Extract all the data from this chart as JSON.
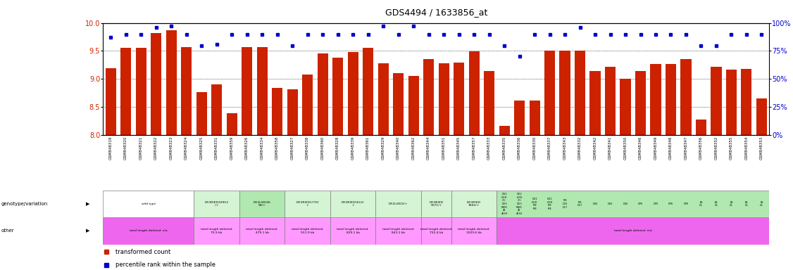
{
  "title": "GDS4494 / 1633856_at",
  "bar_color": "#CC2200",
  "dot_color": "#0000CC",
  "ylim": [
    8.0,
    10.0
  ],
  "yticks": [
    8.0,
    8.5,
    9.0,
    9.5,
    10.0
  ],
  "right_yticks": [
    0,
    25,
    50,
    75,
    100
  ],
  "samples": [
    "GSM848319",
    "GSM848320",
    "GSM848321",
    "GSM848322",
    "GSM848323",
    "GSM848324",
    "GSM848325",
    "GSM848331",
    "GSM848359",
    "GSM848326",
    "GSM848334",
    "GSM848358",
    "GSM848327",
    "GSM848338",
    "GSM848360",
    "GSM848328",
    "GSM848339",
    "GSM848361",
    "GSM848329",
    "GSM848340",
    "GSM848362",
    "GSM848344",
    "GSM848351",
    "GSM848345",
    "GSM848357",
    "GSM848333",
    "GSM848335",
    "GSM848336",
    "GSM848330",
    "GSM848337",
    "GSM848343",
    "GSM848332",
    "GSM848342",
    "GSM848341",
    "GSM848350",
    "GSM848346",
    "GSM848349",
    "GSM848348",
    "GSM848347",
    "GSM848356",
    "GSM848352",
    "GSM848355",
    "GSM848354",
    "GSM848353"
  ],
  "bar_heights": [
    9.19,
    9.56,
    9.56,
    9.82,
    9.87,
    9.57,
    8.77,
    8.9,
    8.39,
    9.57,
    9.57,
    8.84,
    8.82,
    9.08,
    9.46,
    9.38,
    9.48,
    9.56,
    9.28,
    9.1,
    9.06,
    9.35,
    9.28,
    9.29,
    9.49,
    9.14,
    8.16,
    8.62,
    8.62,
    9.51,
    9.51,
    9.51,
    9.14,
    9.22,
    9.01,
    9.14,
    9.27,
    9.27,
    9.35,
    8.28,
    9.22,
    9.17,
    9.18,
    8.65
  ],
  "dot_heights_pct": [
    87,
    90,
    90,
    96,
    97,
    90,
    80,
    81,
    90,
    90,
    90,
    90,
    80,
    90,
    90,
    90,
    90,
    90,
    97,
    90,
    97,
    90,
    90,
    90,
    90,
    90,
    80,
    70,
    90,
    90,
    90,
    96,
    90,
    90,
    90,
    90,
    90,
    90,
    90,
    80,
    80,
    90,
    90,
    90
  ],
  "genotype_groups": [
    {
      "label": "wild type",
      "start": 0,
      "end": 6,
      "color": "white"
    },
    {
      "label": "Df(3R)ED10953\n/+",
      "start": 6,
      "end": 9,
      "color": "#d4f4d4"
    },
    {
      "label": "Df(2L)ED45\n59/+",
      "start": 9,
      "end": 12,
      "color": "#b0e8b0"
    },
    {
      "label": "Df(2R)ED1770/\n+",
      "start": 12,
      "end": 15,
      "color": "#d4f4d4"
    },
    {
      "label": "Df(2R)ED1612/\n+",
      "start": 15,
      "end": 18,
      "color": "#d4f4d4"
    },
    {
      "label": "Df(2L)ED3/+",
      "start": 18,
      "end": 21,
      "color": "#d4f4d4"
    },
    {
      "label": "Df(3R)ED\n5071/+",
      "start": 21,
      "end": 23,
      "color": "#d4f4d4"
    },
    {
      "label": "Df(3R)ED\n7665/+",
      "start": 23,
      "end": 26,
      "color": "#d4f4d4"
    },
    {
      "label": "...",
      "start": 26,
      "end": 44,
      "color": "#b0e8b0"
    }
  ],
  "other_groups": [
    {
      "label": "total length deleted: n/a",
      "start": 0,
      "end": 6,
      "color": "#EE66EE"
    },
    {
      "label": "total length deleted:\n70.9 kb",
      "start": 6,
      "end": 9,
      "color": "#FF99FF"
    },
    {
      "label": "total length deleted:\n479.1 kb",
      "start": 9,
      "end": 12,
      "color": "#FF99FF"
    },
    {
      "label": "total length deleted:\n551.9 kb",
      "start": 12,
      "end": 15,
      "color": "#FF99FF"
    },
    {
      "label": "total length deleted:\n829.1 kb",
      "start": 15,
      "end": 18,
      "color": "#FF99FF"
    },
    {
      "label": "total length deleted:\n843.2 kb",
      "start": 18,
      "end": 21,
      "color": "#FF99FF"
    },
    {
      "label": "total length deleted:\n755.4 kb",
      "start": 21,
      "end": 23,
      "color": "#FF99FF"
    },
    {
      "label": "total length deleted:\n1003.6 kb",
      "start": 23,
      "end": 26,
      "color": "#FF99FF"
    },
    {
      "label": "total length deleted: n/a",
      "start": 26,
      "end": 44,
      "color": "#EE66EE"
    }
  ]
}
